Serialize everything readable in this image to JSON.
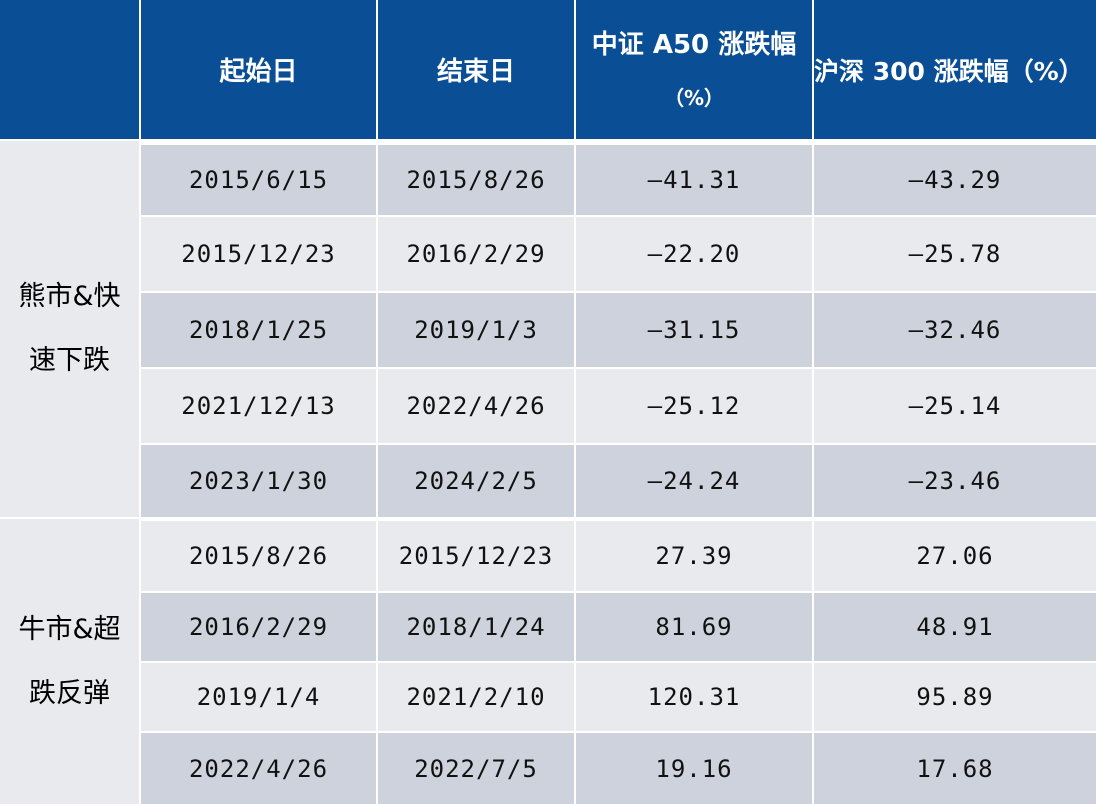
{
  "header": {
    "col0": "",
    "start": "起始日",
    "end": "结束日",
    "a50_line1": "中证 A50 涨跌幅",
    "a50_line2": "（%）",
    "hs300": "沪深 300 涨跌幅（%）"
  },
  "groups": [
    {
      "label_line1": "熊市&快",
      "label_line2": "速下跌",
      "rows": [
        {
          "start": "2015/6/15",
          "end": "2015/8/26",
          "a50": "—41.31",
          "hs300": "—43.29"
        },
        {
          "start": "2015/12/23",
          "end": "2016/2/29",
          "a50": "—22.20",
          "hs300": "—25.78"
        },
        {
          "start": "2018/1/25",
          "end": "2019/1/3",
          "a50": "—31.15",
          "hs300": "—32.46"
        },
        {
          "start": "2021/12/13",
          "end": "2022/4/26",
          "a50": "—25.12",
          "hs300": "—25.14"
        },
        {
          "start": "2023/1/30",
          "end": "2024/2/5",
          "a50": "—24.24",
          "hs300": "—23.46"
        }
      ]
    },
    {
      "label_line1": "牛市&超",
      "label_line2": "跌反弹",
      "rows": [
        {
          "start": "2015/8/26",
          "end": "2015/12/23",
          "a50": "27.39",
          "hs300": "27.06"
        },
        {
          "start": "2016/2/29",
          "end": "2018/1/24",
          "a50": "81.69",
          "hs300": "48.91"
        },
        {
          "start": "2019/1/4",
          "end": "2021/2/10",
          "a50": "120.31",
          "hs300": "95.89"
        },
        {
          "start": "2022/4/26",
          "end": "2022/7/5",
          "a50": "19.16",
          "hs300": "17.68"
        }
      ]
    }
  ]
}
